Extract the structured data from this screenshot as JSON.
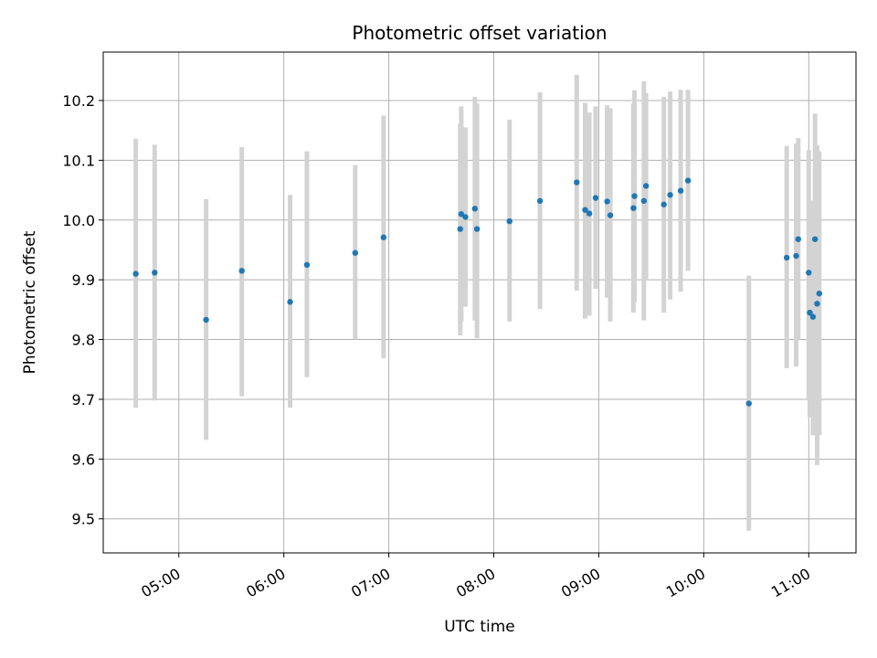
{
  "chart_data": {
    "type": "scatter",
    "title": "Photometric offset variation",
    "xlabel": "UTC time",
    "ylabel": "Photometric offset",
    "x_axis_unit": "hours UTC",
    "xlim": [
      4.28,
      11.45
    ],
    "ylim": [
      9.443,
      10.281
    ],
    "grid": true,
    "x_ticks": [
      {
        "value": 5,
        "label": "05:00"
      },
      {
        "value": 6,
        "label": "06:00"
      },
      {
        "value": 7,
        "label": "07:00"
      },
      {
        "value": 8,
        "label": "08:00"
      },
      {
        "value": 9,
        "label": "09:00"
      },
      {
        "value": 10,
        "label": "10:00"
      },
      {
        "value": 11,
        "label": "11:00"
      }
    ],
    "y_ticks": [
      {
        "value": 9.5,
        "label": "9.5"
      },
      {
        "value": 9.6,
        "label": "9.6"
      },
      {
        "value": 9.7,
        "label": "9.7"
      },
      {
        "value": 9.8,
        "label": "9.8"
      },
      {
        "value": 9.9,
        "label": "9.9"
      },
      {
        "value": 10.0,
        "label": "10.0"
      },
      {
        "value": 10.1,
        "label": "10.1"
      },
      {
        "value": 10.2,
        "label": "10.2"
      }
    ],
    "marker_color": "#1f77b4",
    "errorbar_color": "#d3d3d3",
    "points": [
      {
        "x": 4.59,
        "y": 9.91,
        "lo": 9.686,
        "hi": 10.136
      },
      {
        "x": 4.77,
        "y": 9.912,
        "lo": 9.698,
        "hi": 10.126
      },
      {
        "x": 5.26,
        "y": 9.833,
        "lo": 9.632,
        "hi": 10.035
      },
      {
        "x": 5.6,
        "y": 9.915,
        "lo": 9.705,
        "hi": 10.122
      },
      {
        "x": 6.06,
        "y": 9.863,
        "lo": 9.686,
        "hi": 10.042
      },
      {
        "x": 6.22,
        "y": 9.925,
        "lo": 9.737,
        "hi": 10.115
      },
      {
        "x": 6.68,
        "y": 9.945,
        "lo": 9.8,
        "hi": 10.092
      },
      {
        "x": 6.95,
        "y": 9.971,
        "lo": 9.769,
        "hi": 10.175
      },
      {
        "x": 7.68,
        "y": 9.985,
        "lo": 9.807,
        "hi": 10.161
      },
      {
        "x": 7.69,
        "y": 10.01,
        "lo": 9.83,
        "hi": 10.19
      },
      {
        "x": 7.73,
        "y": 10.005,
        "lo": 9.855,
        "hi": 10.155
      },
      {
        "x": 7.82,
        "y": 10.019,
        "lo": 9.832,
        "hi": 10.206
      },
      {
        "x": 7.84,
        "y": 9.985,
        "lo": 9.802,
        "hi": 10.195
      },
      {
        "x": 8.15,
        "y": 9.998,
        "lo": 9.83,
        "hi": 10.168
      },
      {
        "x": 8.44,
        "y": 10.032,
        "lo": 9.851,
        "hi": 10.214
      },
      {
        "x": 8.79,
        "y": 10.063,
        "lo": 9.882,
        "hi": 10.243
      },
      {
        "x": 8.87,
        "y": 10.017,
        "lo": 9.835,
        "hi": 10.196
      },
      {
        "x": 8.91,
        "y": 10.011,
        "lo": 9.84,
        "hi": 10.18
      },
      {
        "x": 8.97,
        "y": 10.037,
        "lo": 9.885,
        "hi": 10.19
      },
      {
        "x": 9.08,
        "y": 10.031,
        "lo": 9.87,
        "hi": 10.192
      },
      {
        "x": 9.11,
        "y": 10.008,
        "lo": 9.83,
        "hi": 10.187
      },
      {
        "x": 9.33,
        "y": 10.02,
        "lo": 9.845,
        "hi": 10.195
      },
      {
        "x": 9.34,
        "y": 10.04,
        "lo": 9.862,
        "hi": 10.217
      },
      {
        "x": 9.43,
        "y": 10.032,
        "lo": 9.832,
        "hi": 10.232
      },
      {
        "x": 9.45,
        "y": 10.057,
        "lo": 9.9,
        "hi": 10.212
      },
      {
        "x": 9.62,
        "y": 10.026,
        "lo": 9.845,
        "hi": 10.206
      },
      {
        "x": 9.68,
        "y": 10.042,
        "lo": 9.867,
        "hi": 10.215
      },
      {
        "x": 9.78,
        "y": 10.049,
        "lo": 9.88,
        "hi": 10.218
      },
      {
        "x": 9.85,
        "y": 10.066,
        "lo": 9.915,
        "hi": 10.218
      },
      {
        "x": 10.43,
        "y": 9.693,
        "lo": 9.48,
        "hi": 9.907
      },
      {
        "x": 10.79,
        "y": 9.937,
        "lo": 9.752,
        "hi": 10.124
      },
      {
        "x": 10.88,
        "y": 9.94,
        "lo": 9.755,
        "hi": 10.128
      },
      {
        "x": 10.9,
        "y": 9.968,
        "lo": 9.8,
        "hi": 10.137
      },
      {
        "x": 11.0,
        "y": 9.912,
        "lo": 9.7,
        "hi": 10.117
      },
      {
        "x": 11.01,
        "y": 9.845,
        "lo": 9.67,
        "hi": 10.033
      },
      {
        "x": 11.04,
        "y": 9.838,
        "lo": 9.64,
        "hi": 10.032
      },
      {
        "x": 11.06,
        "y": 9.968,
        "lo": 9.76,
        "hi": 10.178
      },
      {
        "x": 11.08,
        "y": 9.86,
        "lo": 9.59,
        "hi": 10.125
      },
      {
        "x": 11.1,
        "y": 9.877,
        "lo": 9.64,
        "hi": 10.115
      }
    ]
  }
}
